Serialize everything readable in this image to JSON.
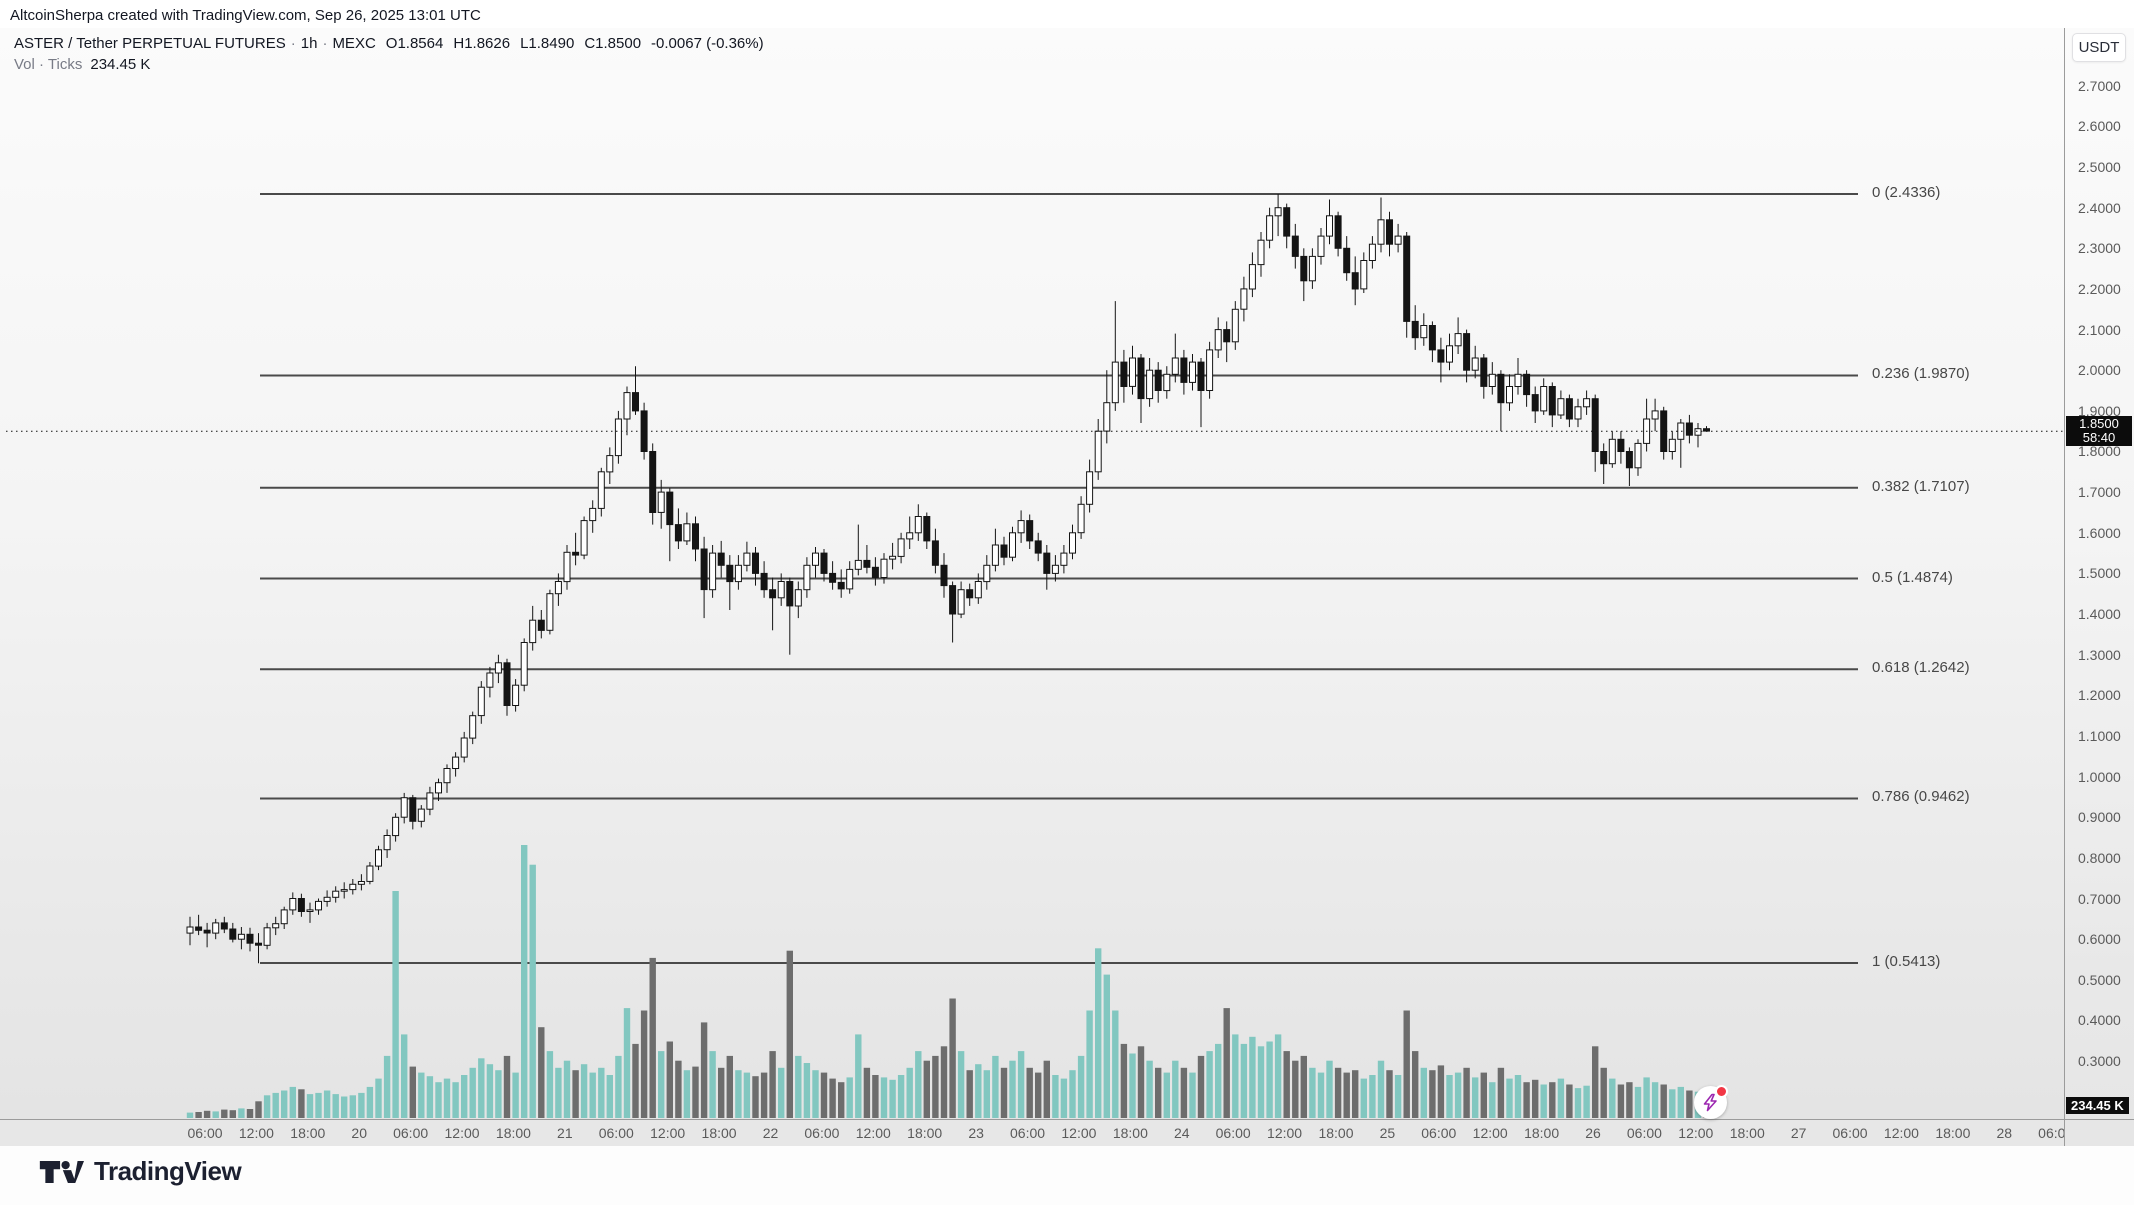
{
  "header": {
    "attribution": "AltcoinSherpa created with TradingView.com, Sep 26, 2025 13:01 UTC"
  },
  "legend": {
    "symbol": "ASTER / Tether PERPETUAL FUTURES",
    "separator": "·",
    "interval": "1h",
    "exchange": "MEXC",
    "o_label": "O",
    "o": "1.8564",
    "h_label": "H",
    "h": "1.8626",
    "l_label": "L",
    "l": "1.8490",
    "c_label": "C",
    "c": "1.8500",
    "change": "-0.0067 (-0.36%)",
    "volume_label": "Vol · Ticks",
    "volume_value": "234.45 K"
  },
  "price_axis": {
    "currency": "USDT",
    "label_max": 2.7,
    "label_min": 0.3,
    "label_step": 0.1,
    "badge": {
      "price": "1.8500",
      "countdown": "58:40"
    },
    "volume_badge": "234.45 K"
  },
  "time_axis": {
    "labels": [
      "06:00",
      "12:00",
      "18:00",
      "20",
      "06:00",
      "12:00",
      "18:00",
      "21",
      "06:00",
      "12:00",
      "18:00",
      "22",
      "06:00",
      "12:00",
      "18:00",
      "23",
      "06:00",
      "12:00",
      "18:00",
      "24",
      "06:00",
      "12:00",
      "18:00",
      "25",
      "06:00",
      "12:00",
      "18:00",
      "26",
      "06:00",
      "12:00",
      "18:00",
      "27",
      "06:00",
      "12:00",
      "18:00",
      "28",
      "06:00"
    ]
  },
  "fib_levels": [
    {
      "label": "0 (2.4336)",
      "ratio": 0,
      "price": 2.4336
    },
    {
      "label": "0.236 (1.9870)",
      "ratio": 0.236,
      "price": 1.987
    },
    {
      "label": "0.382 (1.7107)",
      "ratio": 0.382,
      "price": 1.7107
    },
    {
      "label": "0.5 (1.4874)",
      "ratio": 0.5,
      "price": 1.4874
    },
    {
      "label": "0.618 (1.2642)",
      "ratio": 0.618,
      "price": 1.2642
    },
    {
      "label": "0.786 (0.9462)",
      "ratio": 0.786,
      "price": 0.9462
    },
    {
      "label": "1 (0.5413)",
      "ratio": 1,
      "price": 0.5413
    }
  ],
  "footer": {
    "brand": "TradingView"
  },
  "colors": {
    "up_candle": "#ffffff",
    "candle_stroke": "#141414",
    "down_candle": "#141414",
    "volume_up": "#82c7c0",
    "volume_down": "#6d6d6d",
    "fib_line": "#4a4a4a",
    "badge_bg": "#0c0c0c",
    "badge_text": "#ffffff",
    "live_accent": "#9c27b0",
    "live_alert": "#f23645"
  },
  "chart_data": {
    "type": "candlestick",
    "title": "ASTER / Tether PERPETUAL FUTURES · 1h · MEXC",
    "interval": "1h",
    "x_axis_note": "hourly bars, Sep 19 04:00 UTC through Sep 26 13:00 UTC; day ticks labeled 20-28",
    "y_axis_range_labels": [
      0.3,
      2.7
    ],
    "last_price": 1.85,
    "countdown": "58:40",
    "current_bar_volume_k": 234.45,
    "fib_retracement": {
      "high": 2.4336,
      "low": 0.5413,
      "levels": [
        [
          0,
          2.4336
        ],
        [
          0.236,
          1.987
        ],
        [
          0.382,
          1.7107
        ],
        [
          0.5,
          1.4874
        ],
        [
          0.618,
          1.2642
        ],
        [
          0.786,
          0.9462
        ],
        [
          1,
          0.5413
        ]
      ]
    },
    "candles": [
      [
        0.615,
        0.655,
        0.585,
        0.63
      ],
      [
        0.63,
        0.66,
        0.61,
        0.622
      ],
      [
        0.622,
        0.64,
        0.58,
        0.615
      ],
      [
        0.615,
        0.65,
        0.6,
        0.64
      ],
      [
        0.64,
        0.655,
        0.615,
        0.625
      ],
      [
        0.625,
        0.64,
        0.592,
        0.6
      ],
      [
        0.6,
        0.63,
        0.575,
        0.612
      ],
      [
        0.612,
        0.628,
        0.57,
        0.59
      ],
      [
        0.59,
        0.615,
        0.541,
        0.585
      ],
      [
        0.585,
        0.64,
        0.575,
        0.628
      ],
      [
        0.628,
        0.655,
        0.61,
        0.638
      ],
      [
        0.638,
        0.68,
        0.625,
        0.672
      ],
      [
        0.672,
        0.715,
        0.66,
        0.7
      ],
      [
        0.7,
        0.712,
        0.655,
        0.668
      ],
      [
        0.668,
        0.69,
        0.64,
        0.672
      ],
      [
        0.672,
        0.7,
        0.66,
        0.693
      ],
      [
        0.693,
        0.72,
        0.68,
        0.703
      ],
      [
        0.703,
        0.73,
        0.69,
        0.718
      ],
      [
        0.718,
        0.74,
        0.7,
        0.722
      ],
      [
        0.722,
        0.748,
        0.71,
        0.735
      ],
      [
        0.735,
        0.76,
        0.72,
        0.742
      ],
      [
        0.742,
        0.79,
        0.735,
        0.78
      ],
      [
        0.78,
        0.83,
        0.77,
        0.82
      ],
      [
        0.82,
        0.87,
        0.8,
        0.855
      ],
      [
        0.855,
        0.91,
        0.84,
        0.9
      ],
      [
        0.9,
        0.96,
        0.885,
        0.948
      ],
      [
        0.948,
        0.955,
        0.87,
        0.89
      ],
      [
        0.89,
        0.93,
        0.875,
        0.92
      ],
      [
        0.92,
        0.975,
        0.905,
        0.96
      ],
      [
        0.96,
        0.995,
        0.94,
        0.985
      ],
      [
        0.985,
        1.03,
        0.96,
        1.02
      ],
      [
        1.02,
        1.06,
        1.0,
        1.048
      ],
      [
        1.048,
        1.11,
        1.035,
        1.095
      ],
      [
        1.095,
        1.16,
        1.08,
        1.15
      ],
      [
        1.15,
        1.235,
        1.13,
        1.22
      ],
      [
        1.22,
        1.27,
        1.195,
        1.255
      ],
      [
        1.255,
        1.3,
        1.23,
        1.28
      ],
      [
        1.28,
        1.29,
        1.15,
        1.175
      ],
      [
        1.175,
        1.24,
        1.16,
        1.225
      ],
      [
        1.225,
        1.34,
        1.21,
        1.33
      ],
      [
        1.33,
        1.42,
        1.31,
        1.385
      ],
      [
        1.385,
        1.41,
        1.34,
        1.36
      ],
      [
        1.36,
        1.46,
        1.35,
        1.45
      ],
      [
        1.45,
        1.5,
        1.42,
        1.48
      ],
      [
        1.48,
        1.57,
        1.46,
        1.552
      ],
      [
        1.552,
        1.6,
        1.52,
        1.545
      ],
      [
        1.545,
        1.64,
        1.535,
        1.63
      ],
      [
        1.63,
        1.68,
        1.6,
        1.66
      ],
      [
        1.66,
        1.76,
        1.64,
        1.75
      ],
      [
        1.75,
        1.81,
        1.72,
        1.79
      ],
      [
        1.79,
        1.9,
        1.77,
        1.88
      ],
      [
        1.88,
        1.96,
        1.84,
        1.945
      ],
      [
        1.945,
        2.01,
        1.89,
        1.9
      ],
      [
        1.9,
        1.92,
        1.78,
        1.8
      ],
      [
        1.8,
        1.82,
        1.62,
        1.65
      ],
      [
        1.65,
        1.73,
        1.61,
        1.7
      ],
      [
        1.7,
        1.71,
        1.53,
        1.62
      ],
      [
        1.62,
        1.66,
        1.56,
        1.58
      ],
      [
        1.58,
        1.65,
        1.57,
        1.622
      ],
      [
        1.622,
        1.64,
        1.53,
        1.56
      ],
      [
        1.56,
        1.59,
        1.39,
        1.46
      ],
      [
        1.46,
        1.57,
        1.44,
        1.55
      ],
      [
        1.55,
        1.58,
        1.49,
        1.52
      ],
      [
        1.52,
        1.545,
        1.41,
        1.48
      ],
      [
        1.48,
        1.545,
        1.46,
        1.52
      ],
      [
        1.52,
        1.578,
        1.505,
        1.55
      ],
      [
        1.55,
        1.565,
        1.47,
        1.5
      ],
      [
        1.5,
        1.53,
        1.44,
        1.46
      ],
      [
        1.46,
        1.49,
        1.36,
        1.44
      ],
      [
        1.44,
        1.5,
        1.42,
        1.48
      ],
      [
        1.48,
        1.49,
        1.3,
        1.42
      ],
      [
        1.42,
        1.48,
        1.39,
        1.46
      ],
      [
        1.46,
        1.54,
        1.44,
        1.52
      ],
      [
        1.52,
        1.565,
        1.49,
        1.55
      ],
      [
        1.55,
        1.56,
        1.48,
        1.5
      ],
      [
        1.5,
        1.53,
        1.46,
        1.478
      ],
      [
        1.478,
        1.51,
        1.44,
        1.462
      ],
      [
        1.462,
        1.53,
        1.45,
        1.51
      ],
      [
        1.51,
        1.62,
        1.495,
        1.532
      ],
      [
        1.532,
        1.57,
        1.5,
        1.515
      ],
      [
        1.515,
        1.54,
        1.47,
        1.49
      ],
      [
        1.49,
        1.55,
        1.475,
        1.535
      ],
      [
        1.535,
        1.575,
        1.51,
        1.542
      ],
      [
        1.542,
        1.6,
        1.525,
        1.585
      ],
      [
        1.585,
        1.64,
        1.56,
        1.6
      ],
      [
        1.6,
        1.67,
        1.58,
        1.64
      ],
      [
        1.64,
        1.65,
        1.56,
        1.58
      ],
      [
        1.58,
        1.61,
        1.5,
        1.52
      ],
      [
        1.52,
        1.55,
        1.44,
        1.47
      ],
      [
        1.47,
        1.48,
        1.33,
        1.4
      ],
      [
        1.4,
        1.48,
        1.39,
        1.46
      ],
      [
        1.46,
        1.475,
        1.42,
        1.44
      ],
      [
        1.44,
        1.5,
        1.425,
        1.48
      ],
      [
        1.48,
        1.545,
        1.46,
        1.52
      ],
      [
        1.52,
        1.61,
        1.505,
        1.57
      ],
      [
        1.57,
        1.59,
        1.52,
        1.54
      ],
      [
        1.54,
        1.615,
        1.53,
        1.6
      ],
      [
        1.6,
        1.655,
        1.575,
        1.63
      ],
      [
        1.63,
        1.645,
        1.56,
        1.58
      ],
      [
        1.58,
        1.6,
        1.53,
        1.55
      ],
      [
        1.55,
        1.57,
        1.46,
        1.5
      ],
      [
        1.5,
        1.545,
        1.48,
        1.52
      ],
      [
        1.52,
        1.57,
        1.5,
        1.55
      ],
      [
        1.55,
        1.62,
        1.535,
        1.6
      ],
      [
        1.6,
        1.69,
        1.585,
        1.67
      ],
      [
        1.67,
        1.78,
        1.65,
        1.75
      ],
      [
        1.75,
        1.88,
        1.73,
        1.85
      ],
      [
        1.85,
        2.0,
        1.82,
        1.92
      ],
      [
        1.92,
        2.17,
        1.9,
        2.02
      ],
      [
        2.02,
        2.05,
        1.92,
        1.96
      ],
      [
        1.96,
        2.06,
        1.94,
        2.03
      ],
      [
        2.03,
        2.04,
        1.87,
        1.93
      ],
      [
        1.93,
        2.03,
        1.91,
        2.0
      ],
      [
        2.0,
        2.02,
        1.92,
        1.95
      ],
      [
        1.95,
        2.01,
        1.93,
        1.99
      ],
      [
        1.99,
        2.09,
        1.97,
        2.03
      ],
      [
        2.03,
        2.05,
        1.94,
        1.97
      ],
      [
        1.97,
        2.04,
        1.95,
        2.02
      ],
      [
        2.02,
        2.03,
        1.86,
        1.95
      ],
      [
        1.95,
        2.07,
        1.93,
        2.05
      ],
      [
        2.05,
        2.13,
        2.03,
        2.1
      ],
      [
        2.1,
        2.12,
        2.02,
        2.07
      ],
      [
        2.07,
        2.17,
        2.05,
        2.15
      ],
      [
        2.15,
        2.23,
        2.12,
        2.2
      ],
      [
        2.2,
        2.29,
        2.18,
        2.26
      ],
      [
        2.26,
        2.34,
        2.23,
        2.32
      ],
      [
        2.32,
        2.4,
        2.3,
        2.38
      ],
      [
        2.38,
        2.4336,
        2.33,
        2.4
      ],
      [
        2.4,
        2.41,
        2.3,
        2.33
      ],
      [
        2.33,
        2.36,
        2.25,
        2.28
      ],
      [
        2.28,
        2.3,
        2.17,
        2.22
      ],
      [
        2.22,
        2.3,
        2.2,
        2.28
      ],
      [
        2.28,
        2.35,
        2.26,
        2.33
      ],
      [
        2.33,
        2.42,
        2.31,
        2.38
      ],
      [
        2.38,
        2.39,
        2.28,
        2.3
      ],
      [
        2.3,
        2.33,
        2.22,
        2.24
      ],
      [
        2.24,
        2.28,
        2.16,
        2.2
      ],
      [
        2.2,
        2.29,
        2.19,
        2.27
      ],
      [
        2.27,
        2.33,
        2.25,
        2.31
      ],
      [
        2.31,
        2.425,
        2.29,
        2.37
      ],
      [
        2.37,
        2.39,
        2.28,
        2.31
      ],
      [
        2.31,
        2.36,
        2.29,
        2.33
      ],
      [
        2.33,
        2.34,
        2.08,
        2.12
      ],
      [
        2.12,
        2.16,
        2.05,
        2.08
      ],
      [
        2.08,
        2.14,
        2.06,
        2.11
      ],
      [
        2.11,
        2.12,
        2.02,
        2.05
      ],
      [
        2.05,
        2.08,
        1.97,
        2.02
      ],
      [
        2.02,
        2.09,
        2.0,
        2.06
      ],
      [
        2.06,
        2.13,
        2.04,
        2.09
      ],
      [
        2.09,
        2.1,
        1.97,
        2.0
      ],
      [
        2.0,
        2.06,
        1.98,
        2.03
      ],
      [
        2.03,
        2.04,
        1.93,
        1.96
      ],
      [
        1.96,
        2.02,
        1.94,
        1.99
      ],
      [
        1.99,
        2.0,
        1.85,
        1.92
      ],
      [
        1.92,
        1.99,
        1.9,
        1.96
      ],
      [
        1.96,
        2.03,
        1.94,
        1.99
      ],
      [
        1.99,
        2.0,
        1.91,
        1.94
      ],
      [
        1.94,
        1.96,
        1.87,
        1.9
      ],
      [
        1.9,
        1.98,
        1.89,
        1.96
      ],
      [
        1.96,
        1.97,
        1.86,
        1.89
      ],
      [
        1.89,
        1.95,
        1.88,
        1.93
      ],
      [
        1.93,
        1.94,
        1.86,
        1.88
      ],
      [
        1.88,
        1.93,
        1.86,
        1.91
      ],
      [
        1.91,
        1.95,
        1.89,
        1.93
      ],
      [
        1.93,
        1.94,
        1.75,
        1.8
      ],
      [
        1.8,
        1.82,
        1.72,
        1.77
      ],
      [
        1.77,
        1.85,
        1.76,
        1.83
      ],
      [
        1.83,
        1.85,
        1.77,
        1.8
      ],
      [
        1.8,
        1.81,
        1.715,
        1.76
      ],
      [
        1.76,
        1.83,
        1.74,
        1.82
      ],
      [
        1.82,
        1.93,
        1.8,
        1.88
      ],
      [
        1.88,
        1.93,
        1.85,
        1.9
      ],
      [
        1.9,
        1.91,
        1.78,
        1.8
      ],
      [
        1.8,
        1.85,
        1.78,
        1.83
      ],
      [
        1.83,
        1.88,
        1.76,
        1.87
      ],
      [
        1.87,
        1.89,
        1.82,
        1.84
      ],
      [
        1.84,
        1.87,
        1.81,
        1.856
      ],
      [
        1.856,
        1.8626,
        1.849,
        1.85
      ]
    ],
    "volumes_k": [
      45,
      50,
      60,
      55,
      70,
      65,
      80,
      75,
      140,
      190,
      210,
      230,
      260,
      240,
      200,
      210,
      230,
      200,
      180,
      190,
      210,
      260,
      330,
      520,
      1900,
      700,
      430,
      380,
      350,
      300,
      330,
      300,
      360,
      420,
      500,
      450,
      400,
      520,
      380,
      2285,
      2120,
      760,
      560,
      420,
      480,
      400,
      450,
      380,
      420,
      360,
      520,
      920,
      620,
      900,
      1340,
      560,
      640,
      480,
      400,
      430,
      800,
      560,
      420,
      520,
      400,
      380,
      350,
      380,
      560,
      420,
      1400,
      520,
      460,
      400,
      380,
      330,
      300,
      340,
      700,
      420,
      360,
      340,
      320,
      360,
      420,
      560,
      480,
      520,
      600,
      1000,
      560,
      400,
      450,
      400,
      520,
      420,
      480,
      560,
      420,
      380,
      480,
      360,
      330,
      400,
      520,
      900,
      1420,
      1200,
      900,
      620,
      540,
      600,
      480,
      420,
      380,
      480,
      420,
      380,
      520,
      560,
      620,
      920,
      700,
      620,
      680,
      600,
      640,
      700,
      560,
      480,
      520,
      420,
      380,
      480,
      420,
      380,
      400,
      330,
      360,
      480,
      400,
      360,
      900,
      560,
      420,
      400,
      440,
      360,
      380,
      420,
      340,
      380,
      300,
      420,
      330,
      360,
      300,
      320,
      280,
      300,
      330,
      280,
      250,
      270,
      600,
      420,
      330,
      280,
      300,
      260,
      340,
      300,
      280,
      240,
      260,
      230,
      220,
      234.45
    ]
  }
}
